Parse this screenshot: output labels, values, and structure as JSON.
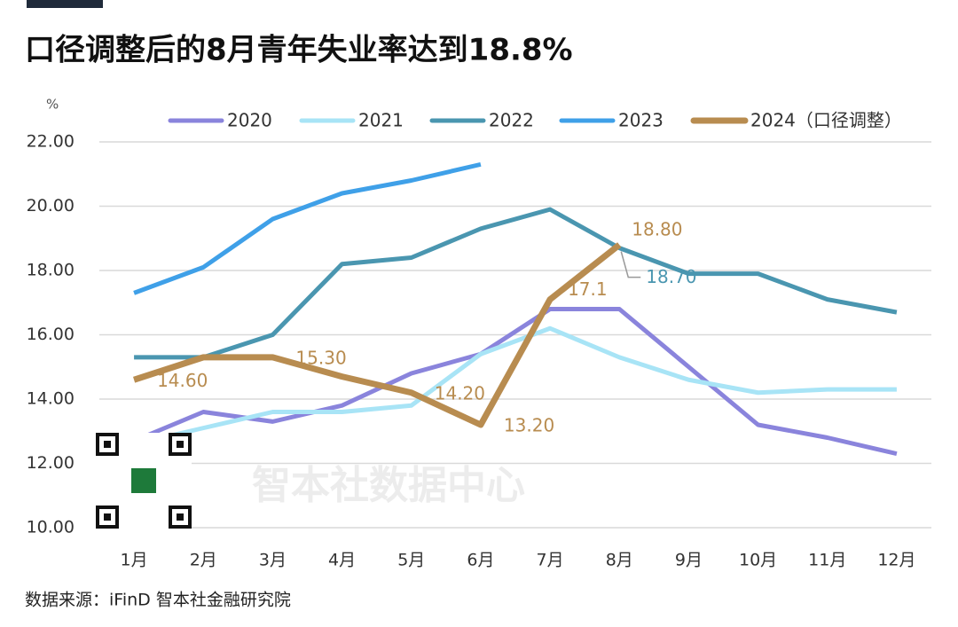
{
  "chart_data": {
    "type": "line",
    "title": "口径调整后的8月青年失业率达到18.8%",
    "y_label": "%",
    "watermark": "智本社数据中心",
    "source": "数据来源：iFinD 智本社金融研究院",
    "categories": [
      "1月",
      "2月",
      "3月",
      "4月",
      "5月",
      "6月",
      "7月",
      "8月",
      "9月",
      "10月",
      "11月",
      "12月"
    ],
    "series": [
      {
        "name": "2020",
        "color": "#8a84dc",
        "values": [
          12.7,
          13.6,
          13.3,
          13.8,
          14.8,
          15.4,
          16.8,
          16.8,
          15.0,
          13.2,
          12.8,
          12.3
        ]
      },
      {
        "name": "2021",
        "color": "#a8e4f6",
        "values": [
          12.6,
          13.1,
          13.6,
          13.6,
          13.8,
          15.4,
          16.2,
          15.3,
          14.6,
          14.2,
          14.3,
          14.3
        ]
      },
      {
        "name": "2022",
        "color": "#4a96b0",
        "values": [
          15.3,
          15.3,
          16.0,
          18.2,
          18.4,
          19.3,
          19.9,
          18.7,
          17.9,
          17.9,
          17.1,
          16.7
        ],
        "value_labels": [
          null,
          null,
          null,
          null,
          null,
          null,
          null,
          "18.70",
          null,
          null,
          null,
          null
        ]
      },
      {
        "name": "2023",
        "color": "#3fa0e8",
        "values": [
          17.3,
          18.1,
          19.6,
          20.4,
          20.8,
          21.3,
          null,
          null,
          null,
          null,
          null,
          null
        ]
      },
      {
        "name": "2024（口径调整）",
        "color": "#b88c50",
        "values": [
          14.6,
          15.3,
          15.3,
          14.7,
          14.2,
          13.2,
          17.1,
          18.8,
          null,
          null,
          null,
          null
        ],
        "value_labels": [
          "14.60",
          null,
          "15.30",
          null,
          "14.20",
          "13.20",
          "17.1",
          "18.80",
          null,
          null,
          null,
          null
        ]
      }
    ],
    "ylim": [
      10,
      22
    ],
    "yticks": [
      {
        "value": 10,
        "label": "10.00"
      },
      {
        "value": 12,
        "label": "12.00"
      },
      {
        "value": 14,
        "label": "14.00"
      },
      {
        "value": 16,
        "label": "16.00"
      },
      {
        "value": 18,
        "label": "18.00"
      },
      {
        "value": 20,
        "label": "20.00"
      },
      {
        "value": 22,
        "label": "22.00"
      }
    ],
    "grid": true,
    "legend": "top"
  }
}
